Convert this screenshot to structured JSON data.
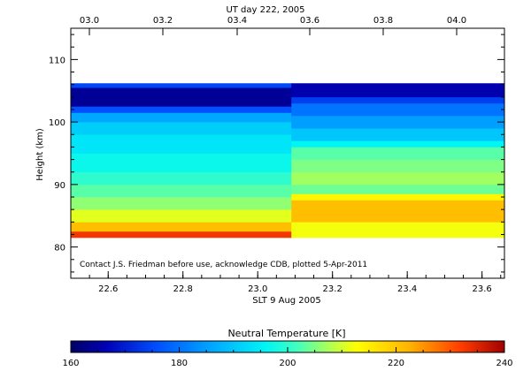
{
  "chart_data": {
    "type": "heatmap",
    "top_axis": {
      "title": "UT day 222, 2005",
      "ticks": [
        "03.0",
        "03.2",
        "03.4",
        "03.6",
        "03.8",
        "04.0"
      ]
    },
    "bottom_axis": {
      "title": "SLT 9 Aug 2005",
      "ticks": [
        "22.6",
        "22.8",
        "23.0",
        "23.2",
        "23.4",
        "23.6"
      ],
      "tick_values": [
        22.6,
        22.8,
        23.0,
        23.2,
        23.4,
        23.6
      ],
      "range": [
        22.5,
        23.66
      ]
    },
    "y_axis": {
      "title": "Height (km)",
      "ticks": [
        "80",
        "90",
        "100",
        "110"
      ],
      "tick_values": [
        80,
        90,
        100,
        110
      ],
      "range": [
        75,
        115
      ]
    },
    "annotation": "Contact J.S. Friedman before use, acknowledge CDB, plotted 5-Apr-2011",
    "colorbar": {
      "title": "Neutral Temperature [K]",
      "ticks": [
        "160",
        "180",
        "200",
        "220",
        "240"
      ],
      "tick_values": [
        160,
        180,
        200,
        220,
        240
      ],
      "range": [
        160,
        240
      ]
    },
    "columns": [
      {
        "x_start": 22.5,
        "x_end": 23.09,
        "profile": [
          {
            "h_bottom": 81.5,
            "h_top": 82.5,
            "temp": 233
          },
          {
            "h_bottom": 82.5,
            "h_top": 84,
            "temp": 221
          },
          {
            "h_bottom": 84,
            "h_top": 86,
            "temp": 211
          },
          {
            "h_bottom": 86,
            "h_top": 88,
            "temp": 206
          },
          {
            "h_bottom": 88,
            "h_top": 90,
            "temp": 203
          },
          {
            "h_bottom": 90,
            "h_top": 92,
            "temp": 200
          },
          {
            "h_bottom": 92,
            "h_top": 95,
            "temp": 197
          },
          {
            "h_bottom": 95,
            "h_top": 98,
            "temp": 194
          },
          {
            "h_bottom": 98,
            "h_top": 100,
            "temp": 191
          },
          {
            "h_bottom": 100,
            "h_top": 101.5,
            "temp": 186
          },
          {
            "h_bottom": 101.5,
            "h_top": 102.5,
            "temp": 176
          },
          {
            "h_bottom": 102.5,
            "h_top": 105.5,
            "temp": 164
          },
          {
            "h_bottom": 105.5,
            "h_top": 106.2,
            "temp": 175
          }
        ]
      },
      {
        "x_start": 23.09,
        "x_end": 23.66,
        "profile": [
          {
            "h_bottom": 81.5,
            "h_top": 84,
            "temp": 212
          },
          {
            "h_bottom": 84,
            "h_top": 87.5,
            "temp": 221
          },
          {
            "h_bottom": 87.5,
            "h_top": 88.5,
            "temp": 214
          },
          {
            "h_bottom": 88.5,
            "h_top": 90,
            "temp": 204
          },
          {
            "h_bottom": 90,
            "h_top": 92,
            "temp": 207
          },
          {
            "h_bottom": 92,
            "h_top": 94,
            "temp": 205
          },
          {
            "h_bottom": 94,
            "h_top": 96,
            "temp": 203
          },
          {
            "h_bottom": 96,
            "h_top": 97,
            "temp": 196
          },
          {
            "h_bottom": 97,
            "h_top": 99,
            "temp": 190
          },
          {
            "h_bottom": 99,
            "h_top": 101,
            "temp": 185
          },
          {
            "h_bottom": 101,
            "h_top": 103,
            "temp": 180
          },
          {
            "h_bottom": 103,
            "h_top": 104,
            "temp": 174
          },
          {
            "h_bottom": 104,
            "h_top": 106.2,
            "temp": 166
          }
        ]
      }
    ]
  }
}
